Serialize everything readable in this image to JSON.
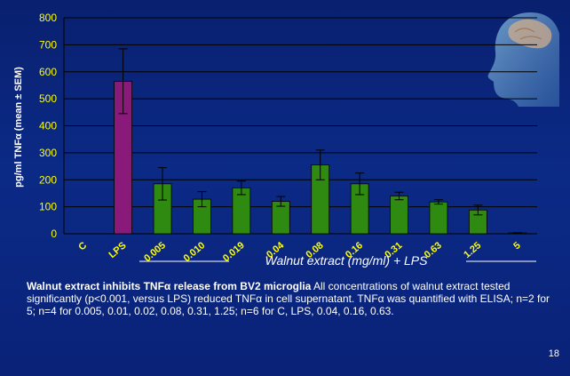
{
  "chart_data": {
    "type": "bar",
    "title": "",
    "ylabel": "pg/ml TNFα (mean ± SEM)",
    "xlabel": "Walnut extract (mg/ml) + LPS",
    "ylim": [
      0,
      800
    ],
    "yticks": [
      0,
      100,
      200,
      300,
      400,
      500,
      600,
      700,
      800
    ],
    "grid": true,
    "categories": [
      "C",
      "LPS",
      "0.005",
      "0.010",
      "0.019",
      "0.04",
      "0.08",
      "0.16",
      "0.31",
      "0.63",
      "1.25",
      "5"
    ],
    "values": [
      0,
      565,
      185,
      128,
      170,
      120,
      255,
      185,
      140,
      118,
      88,
      3
    ],
    "errors": [
      0,
      120,
      60,
      28,
      25,
      18,
      55,
      40,
      14,
      8,
      18,
      1
    ],
    "colors": {
      "LPS": "#8a1a7a",
      "walnut": "#2e8a10",
      "axis_text": "#ffff00"
    }
  },
  "caption": {
    "bold": "Walnut extract inhibits TNFα release from BV2 microglia",
    "text": " All concentrations of walnut extract tested significantly (p<0.001, versus LPS) reduced TNFα in cell supernatant. TNFα was quantified with ELISA; n=2 for 5; n=4 for 0.005, 0.01, 0.02, 0.08, 0.31, 1.25; n=6 for C, LPS, 0.04, 0.16, 0.63."
  },
  "slide_number": "18"
}
